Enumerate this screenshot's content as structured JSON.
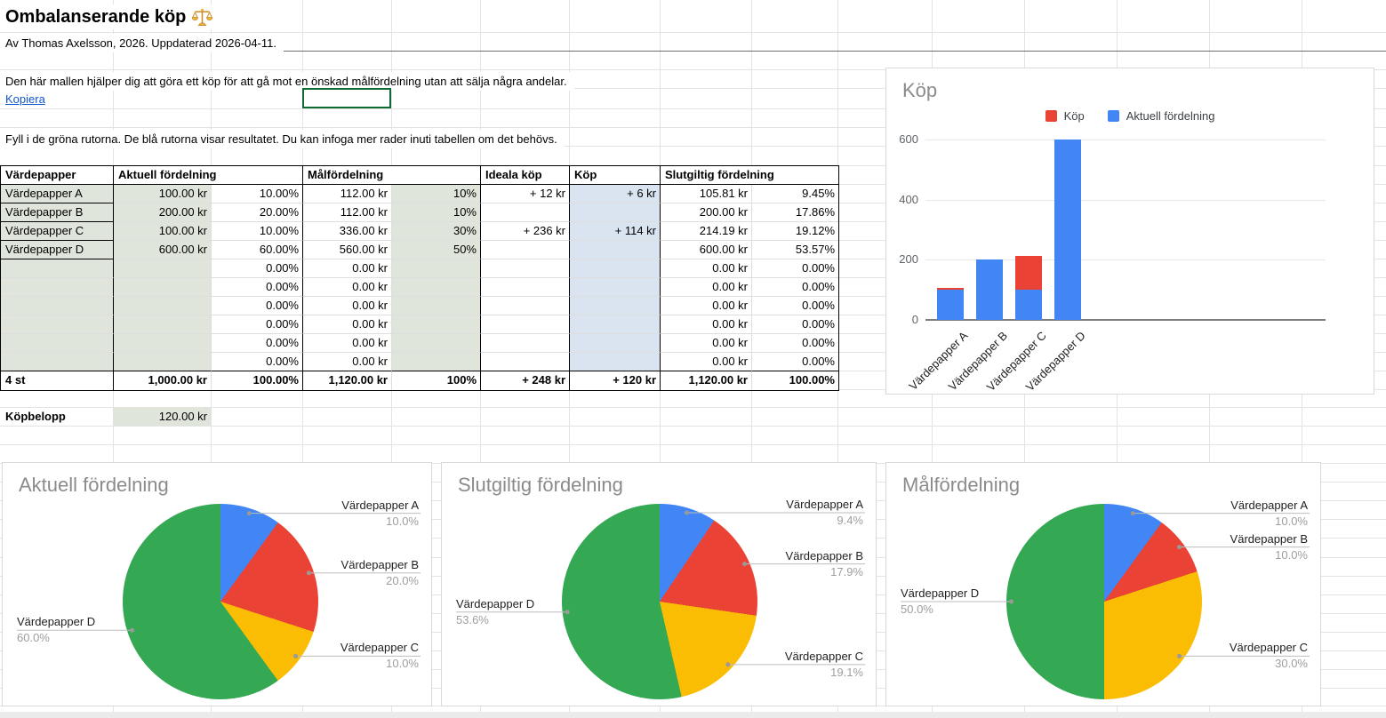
{
  "sheet": {
    "title": "Ombalanserande köp",
    "subtitle": "Av Thomas Axelsson, 2026. Uppdaterad 2026-04-11.",
    "description": "Den här mallen hjälper dig att göra ett köp för att gå mot en önskad målfördelning utan att sälja några andelar.",
    "copy_link": "Kopiera",
    "instructions": "Fyll i de gröna rutorna. De blå rutorna visar resultatet. Du kan infoga mer rader inuti tabellen om det behövs."
  },
  "colors": {
    "input_green": "#dfe5da",
    "result_blue": "#dae3f0",
    "selection_green": "#0e6b33",
    "link_blue": "#1155cc",
    "series_blue": "#4285f4",
    "series_red": "#ea4335",
    "series_yellow": "#fbbc04",
    "series_green": "#34a853"
  },
  "table": {
    "headers": [
      "Värdepapper",
      "Aktuell fördelning",
      "Målfördelning",
      "Ideala köp",
      "Köp",
      "Slutgiltig fördelning"
    ],
    "rows": [
      [
        "Värdepapper A",
        "100.00 kr",
        "10.00%",
        "112.00 kr",
        "10%",
        "+ 12 kr",
        "+ 6 kr",
        "105.81 kr",
        "9.45%"
      ],
      [
        "Värdepapper B",
        "200.00 kr",
        "20.00%",
        "112.00 kr",
        "10%",
        "",
        "",
        "200.00 kr",
        "17.86%"
      ],
      [
        "Värdepapper C",
        "100.00 kr",
        "10.00%",
        "336.00 kr",
        "30%",
        "+ 236 kr",
        "+ 114 kr",
        "214.19 kr",
        "19.12%"
      ],
      [
        "Värdepapper D",
        "600.00 kr",
        "60.00%",
        "560.00 kr",
        "50%",
        "",
        "",
        "600.00 kr",
        "53.57%"
      ],
      [
        "",
        "",
        "0.00%",
        "0.00 kr",
        "",
        "",
        "",
        "0.00 kr",
        "0.00%"
      ],
      [
        "",
        "",
        "0.00%",
        "0.00 kr",
        "",
        "",
        "",
        "0.00 kr",
        "0.00%"
      ],
      [
        "",
        "",
        "0.00%",
        "0.00 kr",
        "",
        "",
        "",
        "0.00 kr",
        "0.00%"
      ],
      [
        "",
        "",
        "0.00%",
        "0.00 kr",
        "",
        "",
        "",
        "0.00 kr",
        "0.00%"
      ],
      [
        "",
        "",
        "0.00%",
        "0.00 kr",
        "",
        "",
        "",
        "0.00 kr",
        "0.00%"
      ],
      [
        "",
        "",
        "0.00%",
        "0.00 kr",
        "",
        "",
        "",
        "0.00 kr",
        "0.00%"
      ]
    ],
    "total_row": [
      "4 st",
      "1,000.00 kr",
      "100.00%",
      "1,120.00 kr",
      "100%",
      "+ 248 kr",
      "+ 120 kr",
      "1,120.00 kr",
      "100.00%"
    ],
    "purchase_label": "Köpbelopp",
    "purchase_value": "120.00 kr"
  },
  "chart_data": [
    {
      "type": "bar",
      "title": "Köp",
      "stacked": true,
      "categories": [
        "Värdepapper A",
        "Värdepapper B",
        "Värdepapper C",
        "Värdepapper D"
      ],
      "series": [
        {
          "name": "Köp",
          "color": "#ea4335",
          "values": [
            6,
            0,
            114,
            0
          ]
        },
        {
          "name": "Aktuell fördelning",
          "color": "#4285f4",
          "values": [
            100,
            200,
            100,
            600
          ]
        }
      ],
      "ylim": [
        0,
        600
      ],
      "yticks": [
        0,
        200,
        400,
        600
      ],
      "legend_position": "top",
      "grid": true
    },
    {
      "type": "pie",
      "title": "Aktuell fördelning",
      "labels": [
        "Värdepapper A",
        "Värdepapper B",
        "Värdepapper C",
        "Värdepapper D"
      ],
      "values": [
        10.0,
        20.0,
        10.0,
        60.0
      ],
      "value_labels": [
        "10.0%",
        "20.0%",
        "10.0%",
        "60.0%"
      ],
      "colors": [
        "#4285f4",
        "#ea4335",
        "#fbbc04",
        "#34a853"
      ]
    },
    {
      "type": "pie",
      "title": "Slutgiltig fördelning",
      "labels": [
        "Värdepapper A",
        "Värdepapper B",
        "Värdepapper C",
        "Värdepapper D"
      ],
      "values": [
        9.4,
        17.9,
        19.1,
        53.6
      ],
      "value_labels": [
        "9.4%",
        "17.9%",
        "19.1%",
        "53.6%"
      ],
      "colors": [
        "#4285f4",
        "#ea4335",
        "#fbbc04",
        "#34a853"
      ]
    },
    {
      "type": "pie",
      "title": "Målfördelning",
      "labels": [
        "Värdepapper A",
        "Värdepapper B",
        "Värdepapper C",
        "Värdepapper D"
      ],
      "values": [
        10.0,
        10.0,
        30.0,
        50.0
      ],
      "value_labels": [
        "10.0%",
        "10.0%",
        "30.0%",
        "50.0%"
      ],
      "colors": [
        "#4285f4",
        "#ea4335",
        "#fbbc04",
        "#34a853"
      ]
    }
  ]
}
